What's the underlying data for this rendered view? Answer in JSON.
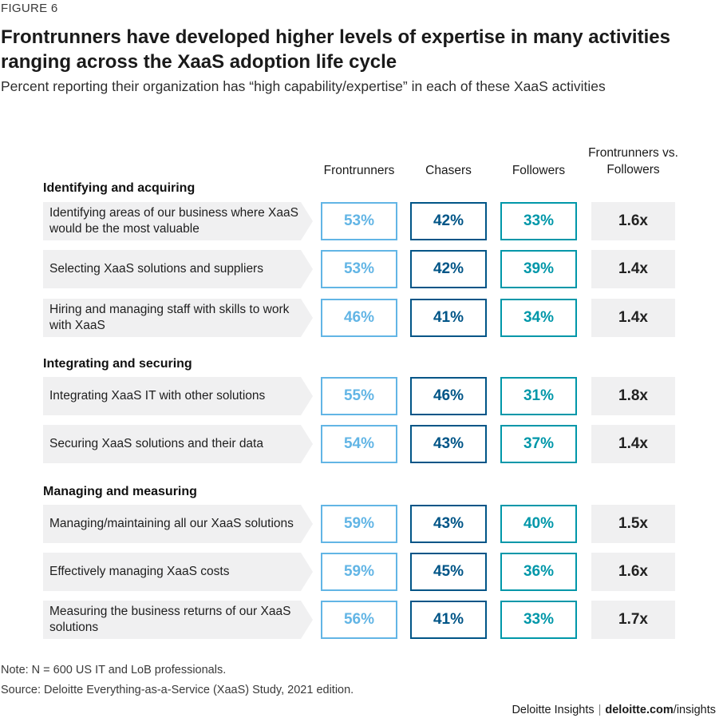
{
  "figure_label": "FIGURE 6",
  "chart_data": {
    "type": "table",
    "title": "Frontrunners have developed higher levels of expertise in many activities ranging across the XaaS adoption life cycle",
    "subtitle": "Percent reporting their organization has “high capability/expertise” in each of these XaaS activities",
    "columns": [
      "Frontrunners",
      "Chasers",
      "Followers",
      "Frontrunners vs. Followers"
    ],
    "colors": {
      "frontrunners": "#62b5e5",
      "chasers": "#005587",
      "followers": "#0097a9",
      "ratio_bg": "#f0f0f1"
    },
    "groups": [
      {
        "name": "Identifying and acquiring",
        "rows": [
          {
            "activity": "Identifying areas of our business where XaaS would be the most valuable",
            "frontrunners": "53%",
            "chasers": "42%",
            "followers": "33%",
            "ratio": "1.6x"
          },
          {
            "activity": "Selecting XaaS solutions and suppliers",
            "frontrunners": "53%",
            "chasers": "42%",
            "followers": "39%",
            "ratio": "1.4x"
          },
          {
            "activity": "Hiring and managing staff with skills to work with XaaS",
            "frontrunners": "46%",
            "chasers": "41%",
            "followers": "34%",
            "ratio": "1.4x"
          }
        ]
      },
      {
        "name": "Integrating and securing",
        "rows": [
          {
            "activity": "Integrating XaaS IT with other solutions",
            "frontrunners": "55%",
            "chasers": "46%",
            "followers": "31%",
            "ratio": "1.8x"
          },
          {
            "activity": "Securing XaaS solutions and their data",
            "frontrunners": "54%",
            "chasers": "43%",
            "followers": "37%",
            "ratio": "1.4x"
          }
        ]
      },
      {
        "name": "Managing and measuring",
        "rows": [
          {
            "activity": "Managing/maintaining all our XaaS solutions",
            "frontrunners": "59%",
            "chasers": "43%",
            "followers": "40%",
            "ratio": "1.5x"
          },
          {
            "activity": "Effectively managing XaaS costs",
            "frontrunners": "59%",
            "chasers": "45%",
            "followers": "36%",
            "ratio": "1.6x"
          },
          {
            "activity": "Measuring the business returns of our XaaS solutions",
            "frontrunners": "56%",
            "chasers": "41%",
            "followers": "33%",
            "ratio": "1.7x"
          }
        ]
      }
    ]
  },
  "note": "Note: N = 600 US IT and LoB professionals.",
  "source": "Source: Deloitte Everything-as-a-Service (XaaS) Study, 2021 edition.",
  "footer": {
    "brand": "Deloitte Insights",
    "separator": "|",
    "site_prefix": "deloitte.com",
    "site_suffix": "/insights"
  }
}
